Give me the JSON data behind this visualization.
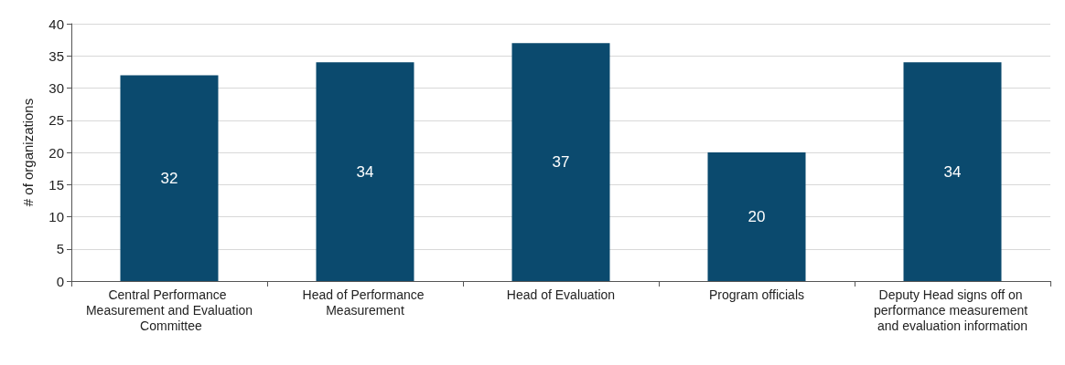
{
  "chart_data": {
    "type": "bar",
    "ylabel": "# of organizations",
    "categories": [
      "Central Performance Measurement and Evaluation Committee",
      "Head of Performance Measurement",
      "Head of Evaluation",
      "Program officials",
      "Deputy Head signs off on performance measurement and evaluation information"
    ],
    "values": [
      32,
      34,
      37,
      20,
      34
    ],
    "color": "#0b4a6e",
    "ylim": [
      0,
      40
    ],
    "yticks": [
      0,
      5,
      10,
      15,
      20,
      25,
      30,
      35,
      40
    ],
    "grid": "y",
    "data_labels": true
  }
}
